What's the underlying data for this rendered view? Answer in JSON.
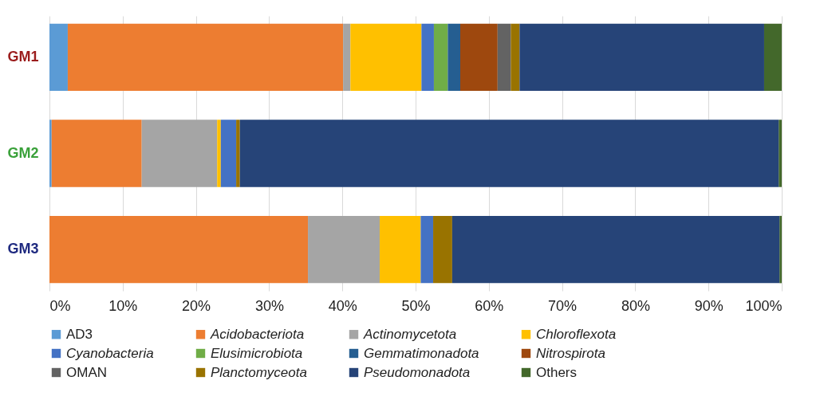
{
  "chart_data": {
    "type": "bar",
    "orientation": "horizontal",
    "stacked": true,
    "categories": [
      "GM1",
      "GM2",
      "GM3"
    ],
    "series": [
      {
        "name": "AD3",
        "color": "#5b9bd5",
        "values": [
          2.5,
          0.3,
          null
        ]
      },
      {
        "name": "Acidobacteriota",
        "color": "#ed7d31",
        "values": [
          37.6,
          12.3,
          35.3
        ]
      },
      {
        "name": "Actinomycetota",
        "color": "#a5a5a5",
        "values": [
          1.0,
          10.3,
          9.8
        ]
      },
      {
        "name": "Chloroflexota",
        "color": "#ffc000",
        "values": [
          9.7,
          0.5,
          5.6
        ]
      },
      {
        "name": "Cyanobacteria",
        "color": "#4472c4",
        "values": [
          1.7,
          2.1,
          1.7
        ]
      },
      {
        "name": "Elusimicrobiota",
        "color": "#70ad47",
        "values": [
          1.9,
          null,
          null
        ]
      },
      {
        "name": "Gemmatimonadota",
        "color": "#255e91",
        "values": [
          1.7,
          null,
          null
        ]
      },
      {
        "name": "Nitrospirota",
        "color": "#9e480e",
        "values": [
          5.1,
          null,
          null
        ]
      },
      {
        "name": "OMAN",
        "color": "#636363",
        "values": [
          1.8,
          null,
          null
        ]
      },
      {
        "name": "Planctomyceota",
        "color": "#997300",
        "values": [
          1.2,
          0.5,
          2.6
        ]
      },
      {
        "name": "Pseudomonadota",
        "color": "#264478",
        "values": [
          33.4,
          73.6,
          44.7
        ]
      },
      {
        "name": "Others",
        "color": "#43682b",
        "values": [
          2.4,
          0.4,
          0.3
        ]
      }
    ],
    "xlim": [
      0,
      100
    ],
    "xticks": [
      {
        "value": 0,
        "label": "0%"
      },
      {
        "value": 10,
        "label": "10%"
      },
      {
        "value": 20,
        "label": "20%"
      },
      {
        "value": 30,
        "label": "30%"
      },
      {
        "value": 40,
        "label": "40%"
      },
      {
        "value": 50,
        "label": "50%"
      },
      {
        "value": 60,
        "label": "60%"
      },
      {
        "value": 70,
        "label": "70%"
      },
      {
        "value": 80,
        "label": "80%"
      },
      {
        "value": 90,
        "label": "90%"
      },
      {
        "value": 100,
        "label": "100%"
      }
    ],
    "grid": "x",
    "legend": "bottom"
  }
}
